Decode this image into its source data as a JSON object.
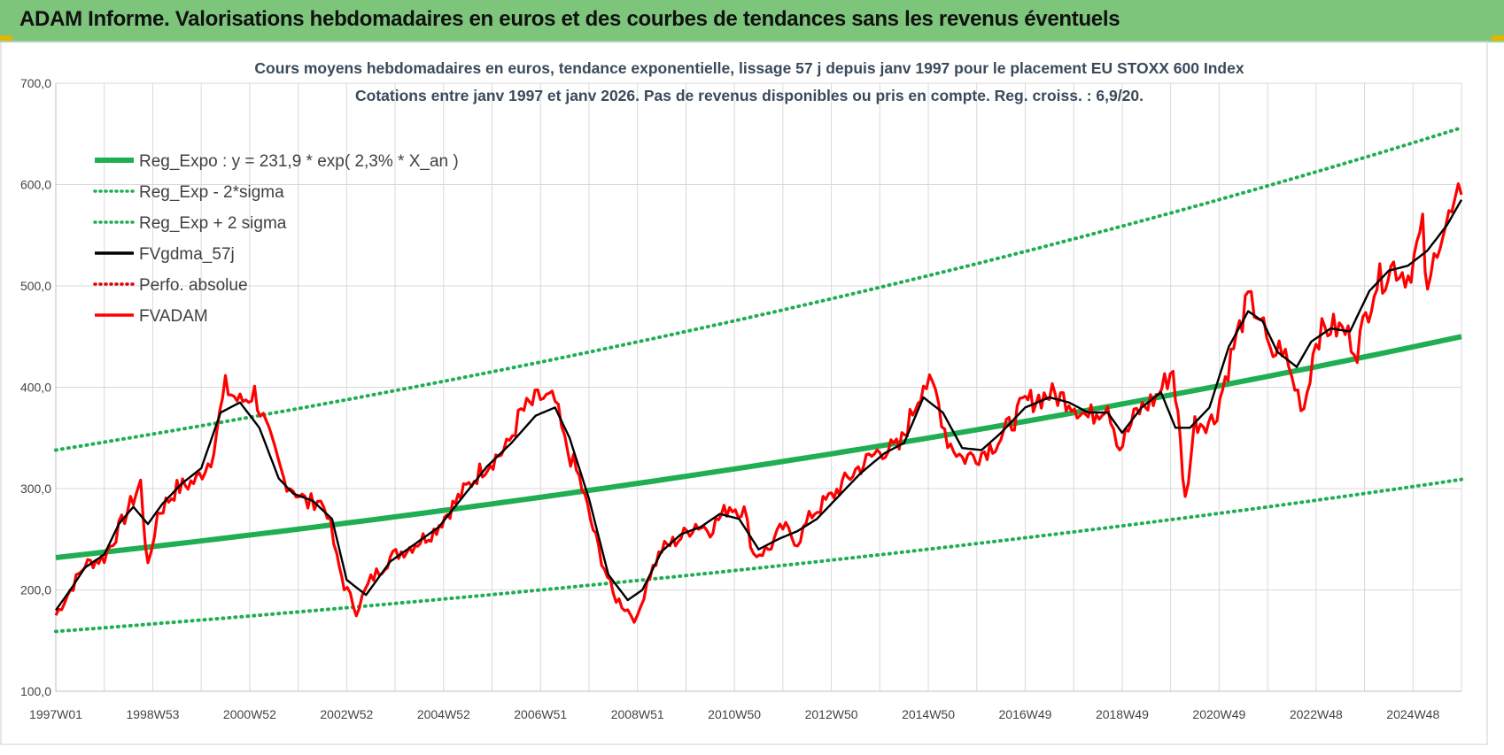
{
  "banner": {
    "title": "ADAM Informe. Valorisations hebdomadaires en euros et des courbes de tendances sans les revenus éventuels"
  },
  "colors": {
    "banner_bg": "#7cc57b",
    "trend": "#1fae52",
    "trend_sigma": "#1fae52",
    "gdma": "#000000",
    "perfo": "#e00000",
    "fvadam": "#ff0000",
    "grid": "#d9d9d9",
    "title_text": "#3a4a5c"
  },
  "chart_data": {
    "type": "line",
    "title": "Cours moyens hebdomadaires en euros, tendance exponentielle, lissage 57 j depuis janv 1997  pour le  placement EU STOXX 600 Index",
    "subtitle": "Cotations entre janv 1997 et janv 2026. Pas de revenus disponibles ou pris  en compte. Reg. croiss. : 6,9/20.",
    "xlabel": "",
    "ylabel": "",
    "ylim": [
      100,
      700
    ],
    "xlim": [
      1997.0,
      2026.0
    ],
    "y_ticks": [
      "700,0",
      "600,0",
      "500,0",
      "400,0",
      "300,0",
      "200,0",
      "100,0"
    ],
    "y_tick_values": [
      700,
      600,
      500,
      400,
      300,
      200,
      100
    ],
    "x_ticks": [
      "1997W01",
      "1998W53",
      "2000W52",
      "2002W52",
      "2004W52",
      "2006W51",
      "2008W51",
      "2010W50",
      "2012W50",
      "2014W50",
      "2016W49",
      "2018W49",
      "2020W49",
      "2022W48",
      "2024W48"
    ],
    "x_tick_values": [
      1997.0,
      1999.0,
      2001.0,
      2003.0,
      2005.0,
      2007.0,
      2009.0,
      2011.0,
      2013.0,
      2015.0,
      2017.0,
      2019.0,
      2021.0,
      2023.0,
      2025.0
    ],
    "grid": true,
    "legend_position": "top-left",
    "legend": [
      {
        "key": "reg_expo",
        "label": "Reg_Expo : y = 231,9 * exp( 2,3% *  X_an )",
        "style": "solid-thick",
        "color": "#1fae52"
      },
      {
        "key": "reg_minus",
        "label": "Reg_Exp - 2*sigma",
        "style": "dotted",
        "color": "#1fae52"
      },
      {
        "key": "reg_plus",
        "label": "Reg_Exp + 2 sigma",
        "style": "dotted",
        "color": "#1fae52"
      },
      {
        "key": "gdma",
        "label": "FVgdma_57j",
        "style": "solid",
        "color": "#000000"
      },
      {
        "key": "perfo",
        "label": "Perfo. absolue",
        "style": "dotted",
        "color": "#e00000"
      },
      {
        "key": "fvadam",
        "label": "FVADAM",
        "style": "solid",
        "color": "#ff0000"
      }
    ],
    "series": [
      {
        "name": "Reg_Expo : y = 231,9 * exp( 2,3% *  X_an )",
        "type": "trend",
        "a": 231.9,
        "rate": 0.023,
        "x": [
          1997.0,
          2026.0
        ],
        "values": [
          231.9,
          450.0
        ]
      },
      {
        "name": "Reg_Exp + 2 sigma",
        "type": "trend",
        "x": [
          1997.0,
          2026.0
        ],
        "values": [
          338,
          656
        ]
      },
      {
        "name": "Reg_Exp - 2*sigma",
        "type": "trend",
        "x": [
          1997.0,
          2026.0
        ],
        "values": [
          159,
          309
        ]
      },
      {
        "name": "FVADAM",
        "x": [
          1997.0,
          1997.3,
          1997.6,
          1998.0,
          1998.3,
          1998.6,
          1998.75,
          1998.9,
          1999.1,
          1999.5,
          1999.9,
          2000.2,
          2000.5,
          2000.8,
          2001.1,
          2001.4,
          2001.7,
          2001.9,
          2002.2,
          2002.4,
          2002.6,
          2002.8,
          2002.95,
          2003.2,
          2003.5,
          2003.9,
          2004.3,
          2004.8,
          2005.3,
          2005.8,
          2006.3,
          2006.6,
          2007.0,
          2007.3,
          2007.5,
          2007.8,
          2008.2,
          2008.5,
          2008.8,
          2009.0,
          2009.2,
          2009.5,
          2009.9,
          2010.2,
          2010.5,
          2010.9,
          2011.2,
          2011.4,
          2011.7,
          2012.0,
          2012.3,
          2012.6,
          2013.0,
          2013.5,
          2014.0,
          2014.4,
          2014.9,
          2015.15,
          2015.4,
          2015.7,
          2016.1,
          2016.5,
          2017.0,
          2017.5,
          2017.9,
          2018.3,
          2018.7,
          2018.95,
          2019.3,
          2019.7,
          2020.05,
          2020.2,
          2020.3,
          2020.5,
          2020.9,
          2021.3,
          2021.6,
          2021.85,
          2022.05,
          2022.3,
          2022.5,
          2022.75,
          2023.0,
          2023.3,
          2023.6,
          2023.85,
          2024.2,
          2024.6,
          2024.9,
          2025.2,
          2025.3,
          2025.5,
          2025.8,
          2026.0
        ],
        "values": [
          175,
          200,
          225,
          232,
          260,
          290,
          305,
          220,
          275,
          300,
          308,
          330,
          400,
          385,
          395,
          350,
          310,
          300,
          285,
          290,
          278,
          230,
          205,
          180,
          210,
          232,
          242,
          258,
          290,
          320,
          340,
          375,
          390,
          385,
          345,
          310,
          240,
          195,
          180,
          170,
          210,
          240,
          252,
          265,
          260,
          283,
          278,
          235,
          240,
          262,
          248,
          275,
          292,
          318,
          338,
          340,
          405,
          395,
          348,
          330,
          335,
          350,
          385,
          393,
          388,
          370,
          385,
          340,
          375,
          390,
          418,
          345,
          288,
          365,
          368,
          440,
          485,
          470,
          430,
          440,
          408,
          380,
          450,
          460,
          455,
          438,
          500,
          520,
          510,
          555,
          485,
          545,
          570,
          590
        ]
      },
      {
        "name": "FVgdma_57j",
        "x": [
          1997.0,
          1997.3,
          1997.6,
          1998.0,
          1998.3,
          1998.6,
          1998.9,
          1999.2,
          1999.6,
          2000.0,
          2000.4,
          2000.8,
          2001.2,
          2001.6,
          2001.9,
          2002.3,
          2002.7,
          2003.0,
          2003.4,
          2003.9,
          2004.4,
          2004.9,
          2005.4,
          2005.9,
          2006.4,
          2006.9,
          2007.3,
          2007.6,
          2008.0,
          2008.4,
          2008.8,
          2009.1,
          2009.5,
          2009.9,
          2010.3,
          2010.7,
          2011.1,
          2011.5,
          2011.9,
          2012.3,
          2012.7,
          2013.1,
          2013.6,
          2014.1,
          2014.5,
          2014.9,
          2015.3,
          2015.7,
          2016.1,
          2016.5,
          2017.0,
          2017.5,
          2017.9,
          2018.3,
          2018.7,
          2019.0,
          2019.4,
          2019.8,
          2020.1,
          2020.4,
          2020.8,
          2021.2,
          2021.6,
          2021.9,
          2022.2,
          2022.6,
          2022.9,
          2023.3,
          2023.7,
          2024.1,
          2024.5,
          2024.9,
          2025.3,
          2025.7,
          2026.0
        ],
        "values": [
          180,
          200,
          222,
          235,
          265,
          282,
          265,
          285,
          305,
          320,
          375,
          385,
          360,
          310,
          295,
          288,
          270,
          210,
          195,
          228,
          245,
          262,
          292,
          322,
          345,
          372,
          380,
          350,
          290,
          215,
          190,
          200,
          238,
          255,
          262,
          275,
          270,
          240,
          250,
          258,
          270,
          290,
          315,
          335,
          345,
          390,
          375,
          340,
          338,
          355,
          380,
          390,
          385,
          375,
          375,
          355,
          380,
          395,
          360,
          360,
          380,
          440,
          475,
          465,
          435,
          420,
          445,
          458,
          455,
          495,
          515,
          520,
          535,
          560,
          585
        ]
      }
    ]
  }
}
